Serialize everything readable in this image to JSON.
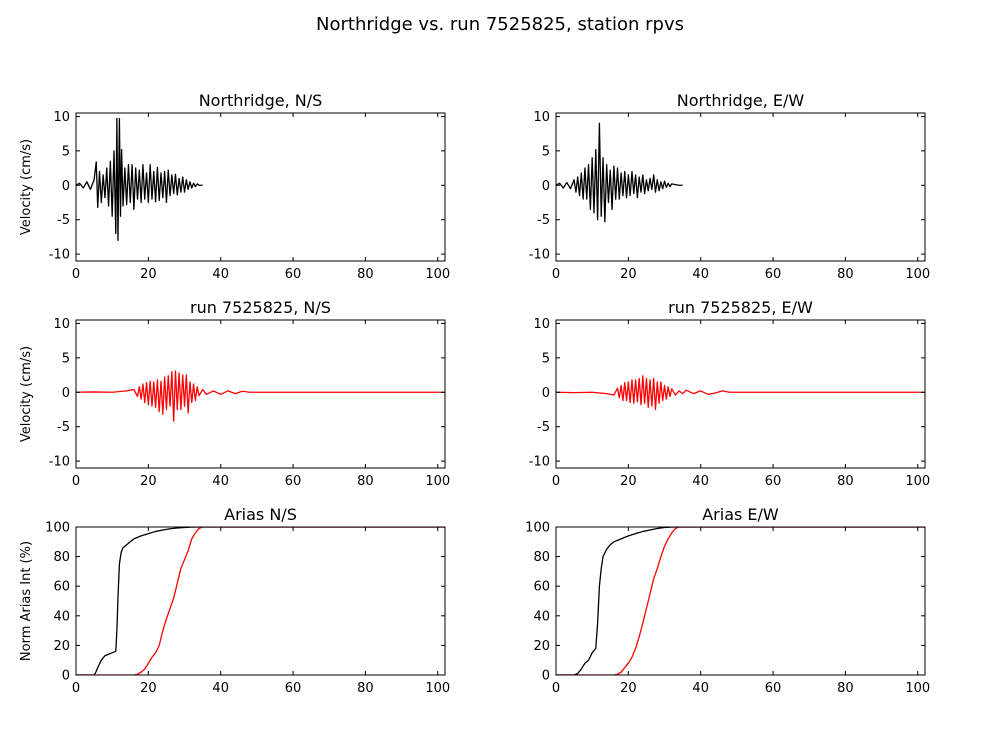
{
  "figure": {
    "title": "Northridge vs. run 7525825, station rpvs"
  },
  "chart_data": [
    {
      "type": "line",
      "title": "Northridge, N/S",
      "ylabel": "Velocity (cm/s)",
      "xlim": [
        0,
        102
      ],
      "ylim": [
        -11,
        10.5
      ],
      "xticks": [
        0,
        20,
        40,
        60,
        80,
        100
      ],
      "yticks": [
        -10,
        -5,
        0,
        5,
        10
      ],
      "series": [
        {
          "color": "#000000",
          "x": [
            0,
            1,
            2,
            3,
            4,
            5,
            5.6,
            6,
            6.5,
            7,
            7.5,
            8,
            8.5,
            9,
            9.5,
            10,
            10.5,
            11,
            11.3,
            11.6,
            12,
            12.3,
            12.6,
            13,
            13.5,
            14,
            14.5,
            15,
            15.5,
            16,
            16.5,
            17,
            17.5,
            18,
            18.5,
            19,
            19.5,
            20,
            20.5,
            21,
            21.5,
            22,
            22.5,
            23,
            23.5,
            24,
            24.5,
            25,
            25.5,
            26,
            26.5,
            27,
            27.5,
            28,
            28.5,
            29,
            29.5,
            30,
            30.5,
            31,
            31.5,
            32,
            32.5,
            33,
            33.5,
            34,
            35
          ],
          "y": [
            0,
            0.3,
            -0.4,
            0.5,
            -0.6,
            0.8,
            3.4,
            -3.2,
            2.0,
            -2.5,
            1.5,
            -1.8,
            2.5,
            -3.0,
            3.5,
            -4.5,
            5.0,
            -7.0,
            9.7,
            -8.0,
            9.7,
            -4.5,
            5.2,
            -3.0,
            2.5,
            -2.8,
            3.0,
            -2.5,
            3.0,
            -3.5,
            2.5,
            -2.0,
            2.2,
            -2.5,
            3.0,
            -2.0,
            1.8,
            -2.5,
            3.0,
            -2.0,
            2.0,
            -2.4,
            2.6,
            -2.2,
            1.8,
            -1.8,
            2.0,
            -2.5,
            2.2,
            -1.5,
            1.5,
            -1.2,
            1.6,
            -1.4,
            1.0,
            -1.0,
            1.2,
            -1.0,
            0.8,
            -0.6,
            0.5,
            -0.4,
            0.3,
            -0.2,
            0.2,
            0,
            0
          ]
        }
      ]
    },
    {
      "type": "line",
      "title": "Northridge, E/W",
      "ylabel": "",
      "xlim": [
        0,
        102
      ],
      "ylim": [
        -11,
        10.5
      ],
      "xticks": [
        0,
        20,
        40,
        60,
        80,
        100
      ],
      "yticks": [
        -10,
        -5,
        0,
        5,
        10
      ],
      "series": [
        {
          "color": "#000000",
          "x": [
            0,
            1,
            2,
            3,
            4,
            5,
            5.5,
            6,
            6.5,
            7,
            7.5,
            8,
            8.5,
            9,
            9.5,
            10,
            10.5,
            11,
            11.5,
            12,
            12.5,
            13,
            13.5,
            14,
            14.5,
            15,
            15.5,
            16,
            16.5,
            17,
            17.5,
            18,
            18.5,
            19,
            19.5,
            20,
            20.5,
            21,
            21.5,
            22,
            22.5,
            23,
            23.5,
            24,
            24.5,
            25,
            25.5,
            26,
            26.5,
            27,
            27.5,
            28,
            28.5,
            29,
            29.5,
            30,
            30.5,
            31,
            31.5,
            32,
            33,
            34,
            35
          ],
          "y": [
            0,
            0.3,
            -0.4,
            0.4,
            -0.5,
            0.8,
            -1.0,
            1.2,
            -1.5,
            1.8,
            -2.0,
            2.5,
            -2.0,
            3.0,
            -3.5,
            4.0,
            -4.0,
            5.2,
            -5.0,
            9.0,
            -4.5,
            4.0,
            -5.3,
            3.0,
            -2.5,
            2.2,
            -3.5,
            2.8,
            -2.0,
            2.5,
            -2.0,
            1.8,
            -1.5,
            2.0,
            -1.8,
            1.5,
            -1.5,
            2.0,
            -1.2,
            1.5,
            -1.8,
            1.2,
            -1.0,
            1.5,
            -1.2,
            0.8,
            -0.8,
            1.0,
            -0.6,
            1.5,
            -1.0,
            0.8,
            -0.8,
            0.5,
            -0.5,
            0.6,
            -0.3,
            0.3,
            -0.2,
            0.2,
            0.1,
            0,
            0
          ]
        }
      ]
    },
    {
      "type": "line",
      "title": "run 7525825, N/S",
      "ylabel": "Velocity (cm/s)",
      "xlim": [
        0,
        102
      ],
      "ylim": [
        -11,
        10.5
      ],
      "xticks": [
        0,
        20,
        40,
        60,
        80,
        100
      ],
      "yticks": [
        -10,
        -5,
        0,
        5,
        10
      ],
      "series": [
        {
          "color": "#ff0000",
          "x": [
            0,
            5,
            10,
            14,
            16,
            17,
            17.5,
            18,
            18.5,
            19,
            19.5,
            20,
            20.5,
            21,
            21.5,
            22,
            22.5,
            23,
            23.5,
            24,
            24.5,
            25,
            25.5,
            26,
            26.5,
            27,
            27.5,
            28,
            28.5,
            29,
            29.5,
            30,
            30.5,
            31,
            31.5,
            32,
            32.5,
            33,
            33.5,
            34,
            35,
            36,
            38,
            40,
            42,
            44,
            46,
            48,
            50,
            60,
            80,
            102
          ],
          "y": [
            0,
            0.05,
            0,
            0.2,
            0.4,
            -0.6,
            0.8,
            -1.0,
            1.2,
            -1.5,
            1.4,
            -1.8,
            1.6,
            -2.0,
            1.5,
            -2.2,
            1.8,
            -2.8,
            1.6,
            -3.2,
            2.2,
            -2.5,
            2.4,
            -2.0,
            3.0,
            -4.2,
            3.1,
            -2.5,
            2.8,
            -2.5,
            2.5,
            -2.0,
            2.5,
            -3.0,
            1.5,
            -1.5,
            1.2,
            -1.2,
            0.8,
            -0.5,
            0.4,
            -0.3,
            0.2,
            -0.3,
            0.2,
            -0.2,
            0.15,
            0,
            0,
            0,
            0,
            0
          ]
        }
      ]
    },
    {
      "type": "line",
      "title": "run 7525825, E/W",
      "ylabel": "",
      "xlim": [
        0,
        102
      ],
      "ylim": [
        -11,
        10.5
      ],
      "xticks": [
        0,
        20,
        40,
        60,
        80,
        100
      ],
      "yticks": [
        -10,
        -5,
        0,
        5,
        10
      ],
      "series": [
        {
          "color": "#ff0000",
          "x": [
            0,
            5,
            10,
            14,
            16,
            17,
            17.5,
            18,
            18.5,
            19,
            19.5,
            20,
            20.5,
            21,
            21.5,
            22,
            22.5,
            23,
            23.5,
            24,
            24.5,
            25,
            25.5,
            26,
            26.5,
            27,
            27.5,
            28,
            28.5,
            29,
            29.5,
            30,
            30.5,
            31,
            31.5,
            32,
            33,
            34,
            35,
            36,
            38,
            40,
            42,
            44,
            46,
            48,
            50,
            60,
            80,
            102
          ],
          "y": [
            0,
            -0.05,
            0,
            -0.2,
            -0.4,
            0.6,
            -0.8,
            1.0,
            -1.2,
            1.4,
            -1.2,
            1.5,
            -1.5,
            1.8,
            -1.6,
            1.8,
            -1.4,
            2.0,
            -1.8,
            2.4,
            -1.6,
            2.0,
            -2.2,
            1.8,
            -2.0,
            2.0,
            -2.5,
            1.5,
            -1.6,
            1.5,
            -1.2,
            1.0,
            -1.0,
            0.8,
            -0.6,
            0.5,
            -0.4,
            0.2,
            -0.2,
            0.3,
            -0.2,
            0.2,
            -0.3,
            -0.1,
            0.2,
            0,
            0,
            0,
            0,
            0
          ]
        }
      ]
    },
    {
      "type": "line",
      "title": "Arias N/S",
      "ylabel": "Norm Arias Int (%)",
      "xlim": [
        0,
        102
      ],
      "ylim": [
        0,
        100
      ],
      "xticks": [
        0,
        20,
        40,
        60,
        80,
        100
      ],
      "yticks": [
        0,
        20,
        40,
        60,
        80,
        100
      ],
      "series": [
        {
          "color": "#000000",
          "x": [
            0,
            5,
            5.5,
            6,
            7,
            8,
            9,
            10,
            11,
            11.3,
            11.6,
            12,
            12.5,
            13,
            14,
            15,
            16,
            17,
            18,
            20,
            22,
            24,
            26,
            28,
            30,
            32,
            34,
            35,
            102
          ],
          "y": [
            0,
            0,
            2,
            5,
            10,
            13,
            14,
            15,
            16,
            30,
            52,
            75,
            83,
            86,
            88,
            90,
            92,
            93,
            94,
            95.5,
            97,
            98,
            98.8,
            99.3,
            99.7,
            99.9,
            100,
            100,
            100
          ]
        },
        {
          "color": "#ff0000",
          "x": [
            0,
            16,
            17,
            18,
            19,
            20,
            21,
            22,
            23,
            24,
            25,
            26,
            27,
            28,
            29,
            30,
            31,
            32,
            33,
            34,
            35,
            40,
            102
          ],
          "y": [
            0,
            0,
            0.5,
            2,
            4,
            8,
            12,
            15,
            20,
            30,
            38,
            45,
            52,
            62,
            72,
            78,
            84,
            92,
            96,
            99,
            100,
            100,
            100
          ]
        }
      ]
    },
    {
      "type": "line",
      "title": "Arias E/W",
      "ylabel": "",
      "xlim": [
        0,
        102
      ],
      "ylim": [
        0,
        100
      ],
      "xticks": [
        0,
        20,
        40,
        60,
        80,
        100
      ],
      "yticks": [
        0,
        20,
        40,
        60,
        80,
        100
      ],
      "series": [
        {
          "color": "#000000",
          "x": [
            0,
            5,
            6,
            7,
            8,
            9,
            10,
            11,
            11.5,
            12,
            12.5,
            13,
            14,
            15,
            16,
            18,
            20,
            22,
            24,
            26,
            28,
            30,
            32,
            34,
            102
          ],
          "y": [
            0,
            0,
            1,
            4,
            8,
            10,
            15,
            18,
            35,
            60,
            72,
            80,
            85,
            88,
            90,
            92,
            94,
            95.5,
            97,
            98,
            99,
            99.7,
            99.9,
            100,
            100
          ]
        },
        {
          "color": "#ff0000",
          "x": [
            0,
            16,
            17,
            18,
            19,
            20,
            21,
            22,
            23,
            24,
            25,
            26,
            27,
            28,
            29,
            30,
            31,
            32,
            33,
            34,
            40,
            102
          ],
          "y": [
            0,
            0,
            0.5,
            2,
            5,
            8,
            12,
            18,
            26,
            35,
            45,
            55,
            65,
            72,
            80,
            87,
            92,
            96,
            99,
            100,
            100,
            100
          ]
        }
      ]
    }
  ]
}
